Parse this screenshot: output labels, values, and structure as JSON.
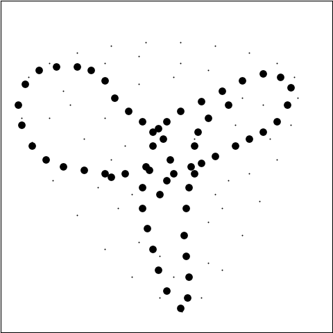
{
  "chart_data": {
    "type": "scatter",
    "tick_labels": false,
    "grid": false,
    "xlim": [
      0,
      480
    ],
    "ylim": [
      480,
      0
    ],
    "series": [
      {
        "color": "#000000",
        "marker": "point",
        "x": [
          25,
          40,
          70,
          110,
          160,
          210,
          260,
          310,
          360,
          400,
          425,
          430,
          420,
          400,
          375,
          350,
          320,
          290,
          262,
          230,
          190,
          150,
          110,
          75,
          45,
          30,
          100,
          150,
          200,
          250,
          300,
          350,
          280,
          330,
          300,
          170,
          140,
          200,
          230,
          320,
          360,
          120,
          180,
          260,
          90,
          380,
          340,
          200,
          150,
          300,
          190,
          310,
          250,
          160,
          390,
          70
        ],
        "y": [
          150,
          110,
          90,
          75,
          65,
          60,
          60,
          65,
          75,
          90,
          110,
          140,
          180,
          230,
          290,
          340,
          390,
          430,
          450,
          430,
          400,
          360,
          310,
          260,
          205,
          170,
          150,
          170,
          120,
          110,
          100,
          140,
          200,
          260,
          320,
          300,
          270,
          350,
          370,
          300,
          250,
          200,
          210,
          90,
          130,
          150,
          180,
          80,
          90,
          380,
          280,
          280,
          400,
          230,
          200,
          170
        ]
      },
      {
        "color": "#000000",
        "marker": "circle",
        "x": [
          260,
          240,
          228,
          220,
          212,
          205,
          205,
          210,
          220,
          228,
          270,
          272,
          268,
          265,
          268,
          272,
          275,
          280,
          285,
          235,
          245,
          240,
          230,
          250,
          215,
          180,
          150,
          120,
          90,
          65,
          45,
          30,
          25,
          35,
          55,
          80,
          110,
          130,
          150,
          165,
          185,
          205,
          220,
          160,
          240,
          260,
          290,
          320,
          350,
          380,
          405,
          420,
          415,
          400,
          380,
          360,
          340,
          310,
          290,
          280,
          300,
          330
        ],
        "y": [
          445,
          420,
          390,
          360,
          330,
          300,
          270,
          240,
          210,
          185,
          430,
          400,
          370,
          340,
          300,
          270,
          240,
          210,
          190,
          200,
          230,
          260,
          280,
          250,
          245,
          250,
          250,
          245,
          240,
          230,
          210,
          180,
          150,
          120,
          100,
          95,
          95,
          100,
          115,
          140,
          160,
          175,
          190,
          255,
          175,
          160,
          145,
          130,
          115,
          105,
          110,
          125,
          150,
          175,
          190,
          200,
          210,
          225,
          235,
          250,
          170,
          150
        ]
      }
    ]
  }
}
